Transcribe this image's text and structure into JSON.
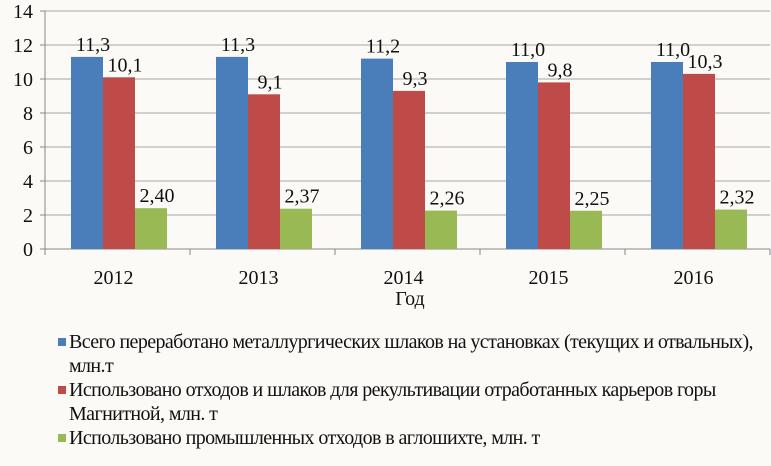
{
  "chart_data": {
    "type": "bar",
    "title": "",
    "xlabel": "Год",
    "ylabel": "",
    "ylim": [
      0,
      14
    ],
    "yticks": [
      0,
      2,
      4,
      6,
      8,
      10,
      12,
      14
    ],
    "grid": true,
    "legend_position": "bottom",
    "categories": [
      "2012",
      "2013",
      "2014",
      "2015",
      "2016"
    ],
    "series": [
      {
        "name": "Всего переработано металлургических шлаков на установках (текущих и отвальных), млн.т",
        "color": "#4a7ebb",
        "values": [
          11.3,
          11.3,
          11.2,
          11.0,
          11.0
        ],
        "labels": [
          "11,3",
          "11,3",
          "11,2",
          "11,0",
          "11,0"
        ]
      },
      {
        "name": "Использовано отходов и шлаков для рекультивации отработанных карьеров горы Магнитной, млн. т",
        "color": "#be4b48",
        "values": [
          10.1,
          9.1,
          9.3,
          9.8,
          10.3
        ],
        "labels": [
          "10,1",
          "9,1",
          "9,3",
          "9,8",
          "10,3"
        ]
      },
      {
        "name": "Использовано промышленных отходов в аглошихте, млн. т",
        "color": "#98b954",
        "values": [
          2.4,
          2.37,
          2.26,
          2.25,
          2.32
        ],
        "labels": [
          "2,40",
          "2,37",
          "2,26",
          "2,25",
          "2,32"
        ]
      }
    ]
  }
}
